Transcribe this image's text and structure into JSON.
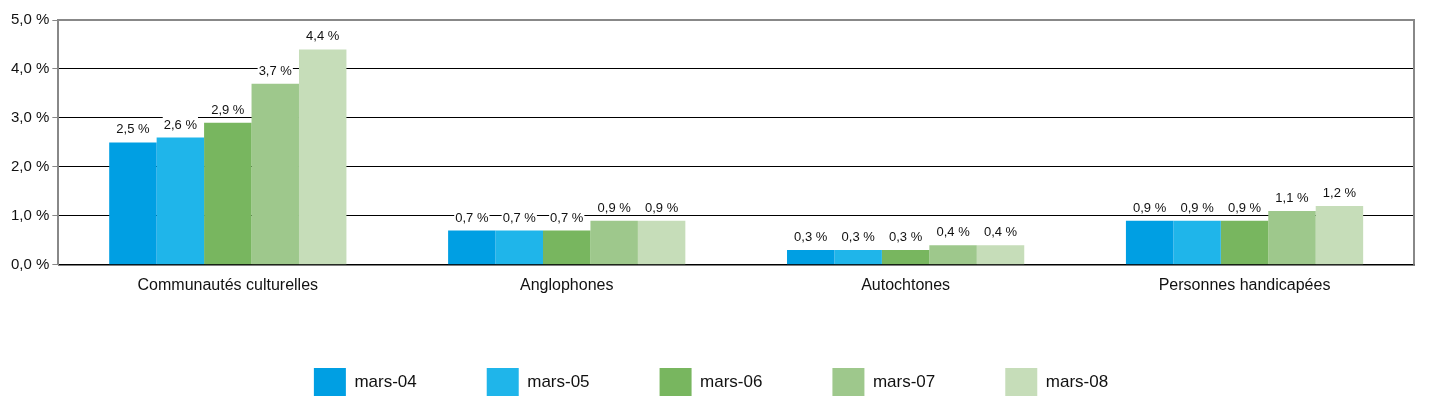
{
  "chart_data": {
    "type": "bar",
    "categories": [
      "Communautés culturelles",
      "Anglophones",
      "Autochtones",
      "Personnes handicapées"
    ],
    "series": [
      {
        "name": "mars-04",
        "color": "#009fe3",
        "values": [
          2.5,
          0.7,
          0.3,
          0.9
        ],
        "value_labels": [
          "2,5 %",
          "0,7 %",
          "0,3 %",
          "0,9 %"
        ]
      },
      {
        "name": "mars-05",
        "color": "#1fb5ea",
        "values": [
          2.6,
          0.7,
          0.3,
          0.9
        ],
        "value_labels": [
          "2,6 %",
          "0,7 %",
          "0,3 %",
          "0,9 %"
        ]
      },
      {
        "name": "mars-06",
        "color": "#78b65f",
        "values": [
          2.9,
          0.7,
          0.3,
          0.9
        ],
        "value_labels": [
          "2,9 %",
          "0,7 %",
          "0,3 %",
          "0,9 %"
        ]
      },
      {
        "name": "mars-07",
        "color": "#9ec88c",
        "values": [
          3.7,
          0.9,
          0.4,
          1.1
        ],
        "value_labels": [
          "3,7 %",
          "0,9 %",
          "0,4 %",
          "1,1 %"
        ]
      },
      {
        "name": "mars-08",
        "color": "#c6ddb9",
        "values": [
          4.4,
          0.9,
          0.4,
          1.2
        ],
        "value_labels": [
          "4,4 %",
          "0,9 %",
          "0,4 %",
          "1,2 %"
        ]
      }
    ],
    "ylim": [
      0,
      5
    ],
    "yticks": [
      {
        "value": 0,
        "label": "0,0 %"
      },
      {
        "value": 1,
        "label": "1,0 %"
      },
      {
        "value": 2,
        "label": "2,0 %"
      },
      {
        "value": 3,
        "label": "3,0 %"
      },
      {
        "value": 4,
        "label": "4,0 %"
      },
      {
        "value": 5,
        "label": "5,0 %"
      }
    ],
    "grid": "y",
    "legend": "bottom"
  }
}
